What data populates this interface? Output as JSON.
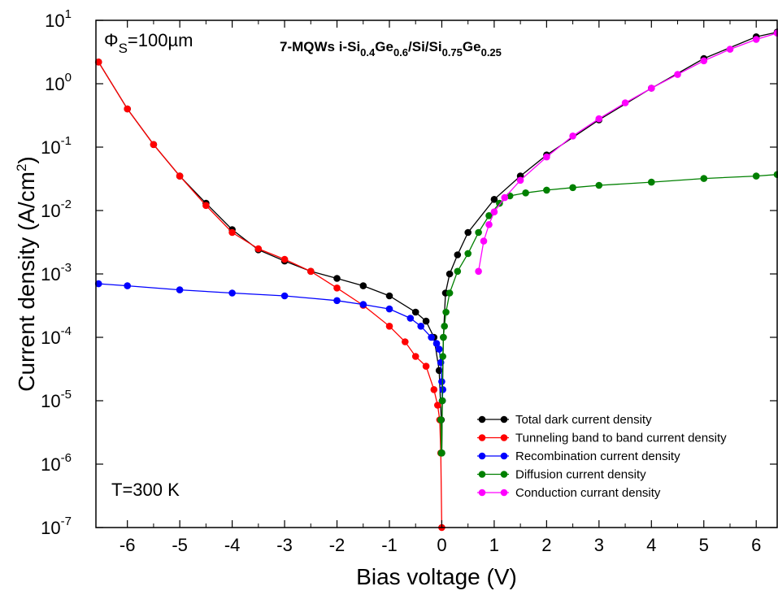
{
  "chart_data": {
    "type": "line",
    "xlabel": "Bias voltage (V)",
    "ylabel": "Current density (A/cm",
    "ylabel_sup": "2",
    "ylabel_close": ")",
    "xlim": [
      -6.6,
      6.4
    ],
    "ylim": [
      1e-07,
      10
    ],
    "y_scale": "log",
    "x_ticks": [
      -6,
      -5,
      -4,
      -3,
      -2,
      -1,
      0,
      1,
      2,
      3,
      4,
      5,
      6
    ],
    "x_tick_labels": [
      "-6",
      "-5",
      "-4",
      "-3",
      "-2",
      "-1",
      "0",
      "1",
      "2",
      "3",
      "4",
      "5",
      "6"
    ],
    "y_ticks": [
      {
        "value": 10,
        "base": "10",
        "exp": "1"
      },
      {
        "value": 1,
        "base": "10",
        "exp": "0"
      },
      {
        "value": 0.1,
        "base": "10",
        "exp": "-1"
      },
      {
        "value": 0.01,
        "base": "10",
        "exp": "-2"
      },
      {
        "value": 0.001,
        "base": "10",
        "exp": "-3"
      },
      {
        "value": 0.0001,
        "base": "10",
        "exp": "-4"
      },
      {
        "value": 1e-05,
        "base": "10",
        "exp": "-5"
      },
      {
        "value": 1e-06,
        "base": "10",
        "exp": "-6"
      },
      {
        "value": 1e-07,
        "base": "10",
        "exp": "-7"
      }
    ],
    "grid": false,
    "legend_position": "bottom-right",
    "annotations": {
      "phi": "Φ",
      "phi_sub": "S",
      "phi_value": "=100µm",
      "temperature": "T=300 K",
      "title_parts": [
        {
          "text": "7-MQWs i-Si",
          "sub": false
        },
        {
          "text": "0.4",
          "sub": true
        },
        {
          "text": "Ge",
          "sub": false
        },
        {
          "text": "0.6",
          "sub": true
        },
        {
          "text": "/Si/Si",
          "sub": false
        },
        {
          "text": "0.75",
          "sub": true
        },
        {
          "text": "Ge",
          "sub": false
        },
        {
          "text": "0.25",
          "sub": true
        }
      ]
    },
    "series": [
      {
        "name": "Total dark current density",
        "color": "#000000",
        "x": [
          -6.55,
          -6.0,
          -5.5,
          -5.0,
          -4.5,
          -4.0,
          -3.5,
          -3.0,
          -2.5,
          -2.0,
          -1.5,
          -1.0,
          -0.5,
          -0.3,
          -0.15,
          -0.05,
          -0.01,
          0.0,
          0.01,
          0.03,
          0.07,
          0.15,
          0.3,
          0.5,
          1.0,
          1.5,
          2.0,
          3.0,
          4.0,
          5.0,
          6.0,
          6.4
        ],
        "y": [
          2.2,
          0.4,
          0.11,
          0.035,
          0.013,
          0.005,
          0.0024,
          0.0016,
          0.0011,
          0.00085,
          0.00065,
          0.00045,
          0.00025,
          0.00018,
          0.0001,
          3e-05,
          5e-06,
          1.5e-06,
          1e-05,
          0.0001,
          0.0005,
          0.001,
          0.002,
          0.0045,
          0.015,
          0.035,
          0.075,
          0.27,
          0.85,
          2.5,
          5.5,
          6.5
        ]
      },
      {
        "name": "Tunneling band to band current density",
        "color": "#ff0000",
        "x": [
          -6.55,
          -6.0,
          -5.5,
          -5.0,
          -4.5,
          -4.0,
          -3.5,
          -3.0,
          -2.5,
          -2.0,
          -1.5,
          -1.0,
          -0.7,
          -0.5,
          -0.3,
          -0.15,
          -0.08,
          -0.04,
          -0.02,
          0.0
        ],
        "y": [
          2.2,
          0.4,
          0.11,
          0.035,
          0.012,
          0.0045,
          0.0025,
          0.0017,
          0.0011,
          0.0006,
          0.00032,
          0.00015,
          8.5e-05,
          5e-05,
          3.5e-05,
          1.5e-05,
          8.5e-06,
          5e-06,
          1.5e-06,
          1e-07
        ]
      },
      {
        "name": "Recombination current density",
        "color": "#0000ff",
        "x": [
          -6.55,
          -6.0,
          -5.0,
          -4.0,
          -3.0,
          -2.0,
          -1.5,
          -1.0,
          -0.6,
          -0.4,
          -0.2,
          -0.1,
          -0.05,
          -0.02,
          0.0,
          0.01,
          0.02
        ],
        "y": [
          0.0007,
          0.00065,
          0.00056,
          0.0005,
          0.00045,
          0.00038,
          0.00033,
          0.00028,
          0.0002,
          0.00015,
          0.0001,
          8e-05,
          6.5e-05,
          4e-05,
          2e-05,
          1e-05,
          1.5e-05
        ]
      },
      {
        "name": "Diffusion current density",
        "color": "#008000",
        "x": [
          -0.02,
          -0.01,
          0.0,
          0.01,
          0.02,
          0.03,
          0.05,
          0.08,
          0.15,
          0.3,
          0.5,
          0.7,
          0.9,
          1.1,
          1.3,
          1.6,
          2.0,
          2.5,
          3.0,
          4.0,
          5.0,
          6.0,
          6.4
        ],
        "y": [
          5e-06,
          1.5e-06,
          1.5e-06,
          1e-05,
          5e-05,
          0.0001,
          0.00015,
          0.00025,
          0.0005,
          0.0011,
          0.0021,
          0.0045,
          0.0083,
          0.013,
          0.017,
          0.019,
          0.021,
          0.023,
          0.025,
          0.028,
          0.032,
          0.035,
          0.037
        ]
      },
      {
        "name": "Conduction currant density",
        "color": "#ff00ff",
        "x": [
          0.7,
          0.8,
          0.9,
          1.0,
          1.2,
          1.5,
          2.0,
          2.5,
          3.0,
          3.5,
          4.0,
          4.5,
          5.0,
          5.5,
          6.0,
          6.4
        ],
        "y": [
          0.0011,
          0.0033,
          0.006,
          0.0095,
          0.016,
          0.03,
          0.07,
          0.15,
          0.28,
          0.5,
          0.85,
          1.4,
          2.3,
          3.5,
          5.0,
          6.3
        ]
      }
    ]
  }
}
